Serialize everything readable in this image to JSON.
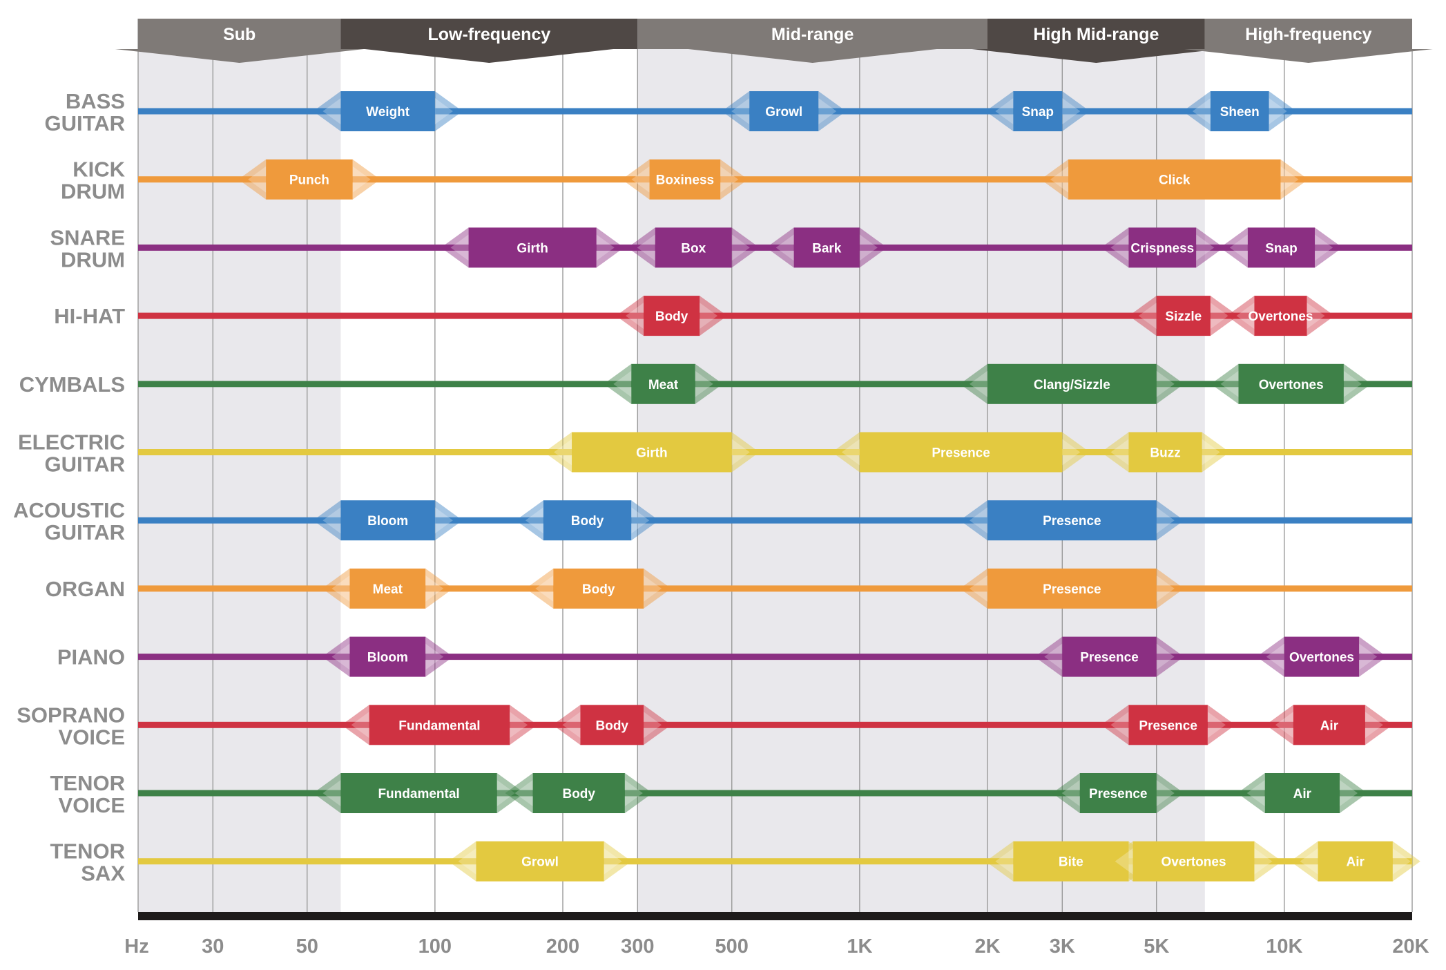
{
  "chart_data": {
    "type": "range_bars",
    "x_unit_label": "Hz",
    "xlim": [
      20,
      20000
    ],
    "x_scale": "log",
    "x_ticks": [
      {
        "value": 30,
        "label": "30"
      },
      {
        "value": 50,
        "label": "50"
      },
      {
        "value": 100,
        "label": "100"
      },
      {
        "value": 200,
        "label": "200"
      },
      {
        "value": 300,
        "label": "300"
      },
      {
        "value": 500,
        "label": "500"
      },
      {
        "value": 1000,
        "label": "1K"
      },
      {
        "value": 2000,
        "label": "2K"
      },
      {
        "value": 3000,
        "label": "3K"
      },
      {
        "value": 5000,
        "label": "5K"
      },
      {
        "value": 10000,
        "label": "10K"
      },
      {
        "value": 20000,
        "label": "20K"
      }
    ],
    "bands": [
      {
        "name": "Sub",
        "from": 20,
        "to": 60,
        "color": "#7f7a77",
        "shaded": true
      },
      {
        "name": "Low-frequency",
        "from": 60,
        "to": 300,
        "color": "#4f4845",
        "shaded": false
      },
      {
        "name": "Mid-range",
        "from": 300,
        "to": 2000,
        "color": "#7f7a77",
        "shaded": true
      },
      {
        "name": "High Mid-range",
        "from": 2000,
        "to": 6500,
        "color": "#4f4845",
        "shaded": true
      },
      {
        "name": "High-frequency",
        "from": 6500,
        "to": 20000,
        "color": "#7f7a77",
        "shaded": false
      }
    ],
    "colors": {
      "blue": "#3a80c3",
      "orange": "#ef9a3c",
      "purple": "#8b2f82",
      "red": "#cf3242",
      "green": "#3e8148",
      "yellow": "#e3c940",
      "grid": "#9a9a9a",
      "shade": "#e9e8ec",
      "axis": "#1e1b1b",
      "label": "#8c8c8c"
    },
    "instruments": [
      {
        "name": [
          "BASS",
          "GUITAR"
        ],
        "color": "blue",
        "ranges": [
          {
            "label": "Weight",
            "from": 60,
            "to": 100
          },
          {
            "label": "Growl",
            "from": 550,
            "to": 800
          },
          {
            "label": "Snap",
            "from": 2300,
            "to": 3000
          },
          {
            "label": "Sheen",
            "from": 6700,
            "to": 9200
          }
        ]
      },
      {
        "name": [
          "KICK",
          "DRUM"
        ],
        "color": "orange",
        "ranges": [
          {
            "label": "Punch",
            "from": 40,
            "to": 64
          },
          {
            "label": "Boxiness",
            "from": 320,
            "to": 470
          },
          {
            "label": "Click",
            "from": 3100,
            "to": 9800
          }
        ]
      },
      {
        "name": [
          "SNARE",
          "DRUM"
        ],
        "color": "purple",
        "ranges": [
          {
            "label": "Girth",
            "from": 120,
            "to": 240
          },
          {
            "label": "Box",
            "from": 330,
            "to": 500
          },
          {
            "label": "Bark",
            "from": 700,
            "to": 1000
          },
          {
            "label": "Crispness",
            "from": 4300,
            "to": 6200
          },
          {
            "label": "Snap",
            "from": 8200,
            "to": 11800
          }
        ]
      },
      {
        "name": [
          "HI-HAT"
        ],
        "color": "red",
        "ranges": [
          {
            "label": "Body",
            "from": 310,
            "to": 420
          },
          {
            "label": "Sizzle",
            "from": 5000,
            "to": 6700
          },
          {
            "label": "Overtones",
            "from": 8500,
            "to": 11300
          }
        ]
      },
      {
        "name": [
          "CYMBALS"
        ],
        "color": "green",
        "ranges": [
          {
            "label": "Meat",
            "from": 290,
            "to": 410
          },
          {
            "label": "Clang/Sizzle",
            "from": 2000,
            "to": 5000
          },
          {
            "label": "Overtones",
            "from": 7800,
            "to": 13800
          }
        ]
      },
      {
        "name": [
          "ELECTRIC",
          "GUITAR"
        ],
        "color": "yellow",
        "ranges": [
          {
            "label": "Girth",
            "from": 210,
            "to": 500
          },
          {
            "label": "Presence",
            "from": 1000,
            "to": 3000
          },
          {
            "label": "Buzz",
            "from": 4300,
            "to": 6400
          }
        ]
      },
      {
        "name": [
          "ACOUSTIC",
          "GUITAR"
        ],
        "color": "blue",
        "ranges": [
          {
            "label": "Bloom",
            "from": 60,
            "to": 100
          },
          {
            "label": "Body",
            "from": 180,
            "to": 290
          },
          {
            "label": "Presence",
            "from": 2000,
            "to": 5000
          }
        ]
      },
      {
        "name": [
          "ORGAN"
        ],
        "color": "orange",
        "ranges": [
          {
            "label": "Meat",
            "from": 63,
            "to": 95
          },
          {
            "label": "Body",
            "from": 190,
            "to": 310
          },
          {
            "label": "Presence",
            "from": 2000,
            "to": 5000
          }
        ]
      },
      {
        "name": [
          "PIANO"
        ],
        "color": "purple",
        "ranges": [
          {
            "label": "Bloom",
            "from": 63,
            "to": 95
          },
          {
            "label": "Presence",
            "from": 3000,
            "to": 5000
          },
          {
            "label": "Overtones",
            "from": 10000,
            "to": 15000
          }
        ]
      },
      {
        "name": [
          "SOPRANO",
          "VOICE"
        ],
        "color": "red",
        "ranges": [
          {
            "label": "Fundamental",
            "from": 70,
            "to": 150
          },
          {
            "label": "Body",
            "from": 220,
            "to": 310
          },
          {
            "label": "Presence",
            "from": 4300,
            "to": 6600
          },
          {
            "label": "Air",
            "from": 10500,
            "to": 15500
          }
        ]
      },
      {
        "name": [
          "TENOR",
          "VOICE"
        ],
        "color": "green",
        "ranges": [
          {
            "label": "Fundamental",
            "from": 60,
            "to": 140
          },
          {
            "label": "Body",
            "from": 170,
            "to": 280
          },
          {
            "label": "Presence",
            "from": 3300,
            "to": 5000
          },
          {
            "label": "Air",
            "from": 9000,
            "to": 13500
          }
        ]
      },
      {
        "name": [
          "TENOR",
          "SAX"
        ],
        "color": "yellow",
        "ranges": [
          {
            "label": "Growl",
            "from": 125,
            "to": 250
          },
          {
            "label": "Bite",
            "from": 2300,
            "to": 4300
          },
          {
            "label": "Overtones",
            "from": 4400,
            "to": 8500
          },
          {
            "label": "Air",
            "from": 12000,
            "to": 18000
          }
        ]
      }
    ]
  }
}
